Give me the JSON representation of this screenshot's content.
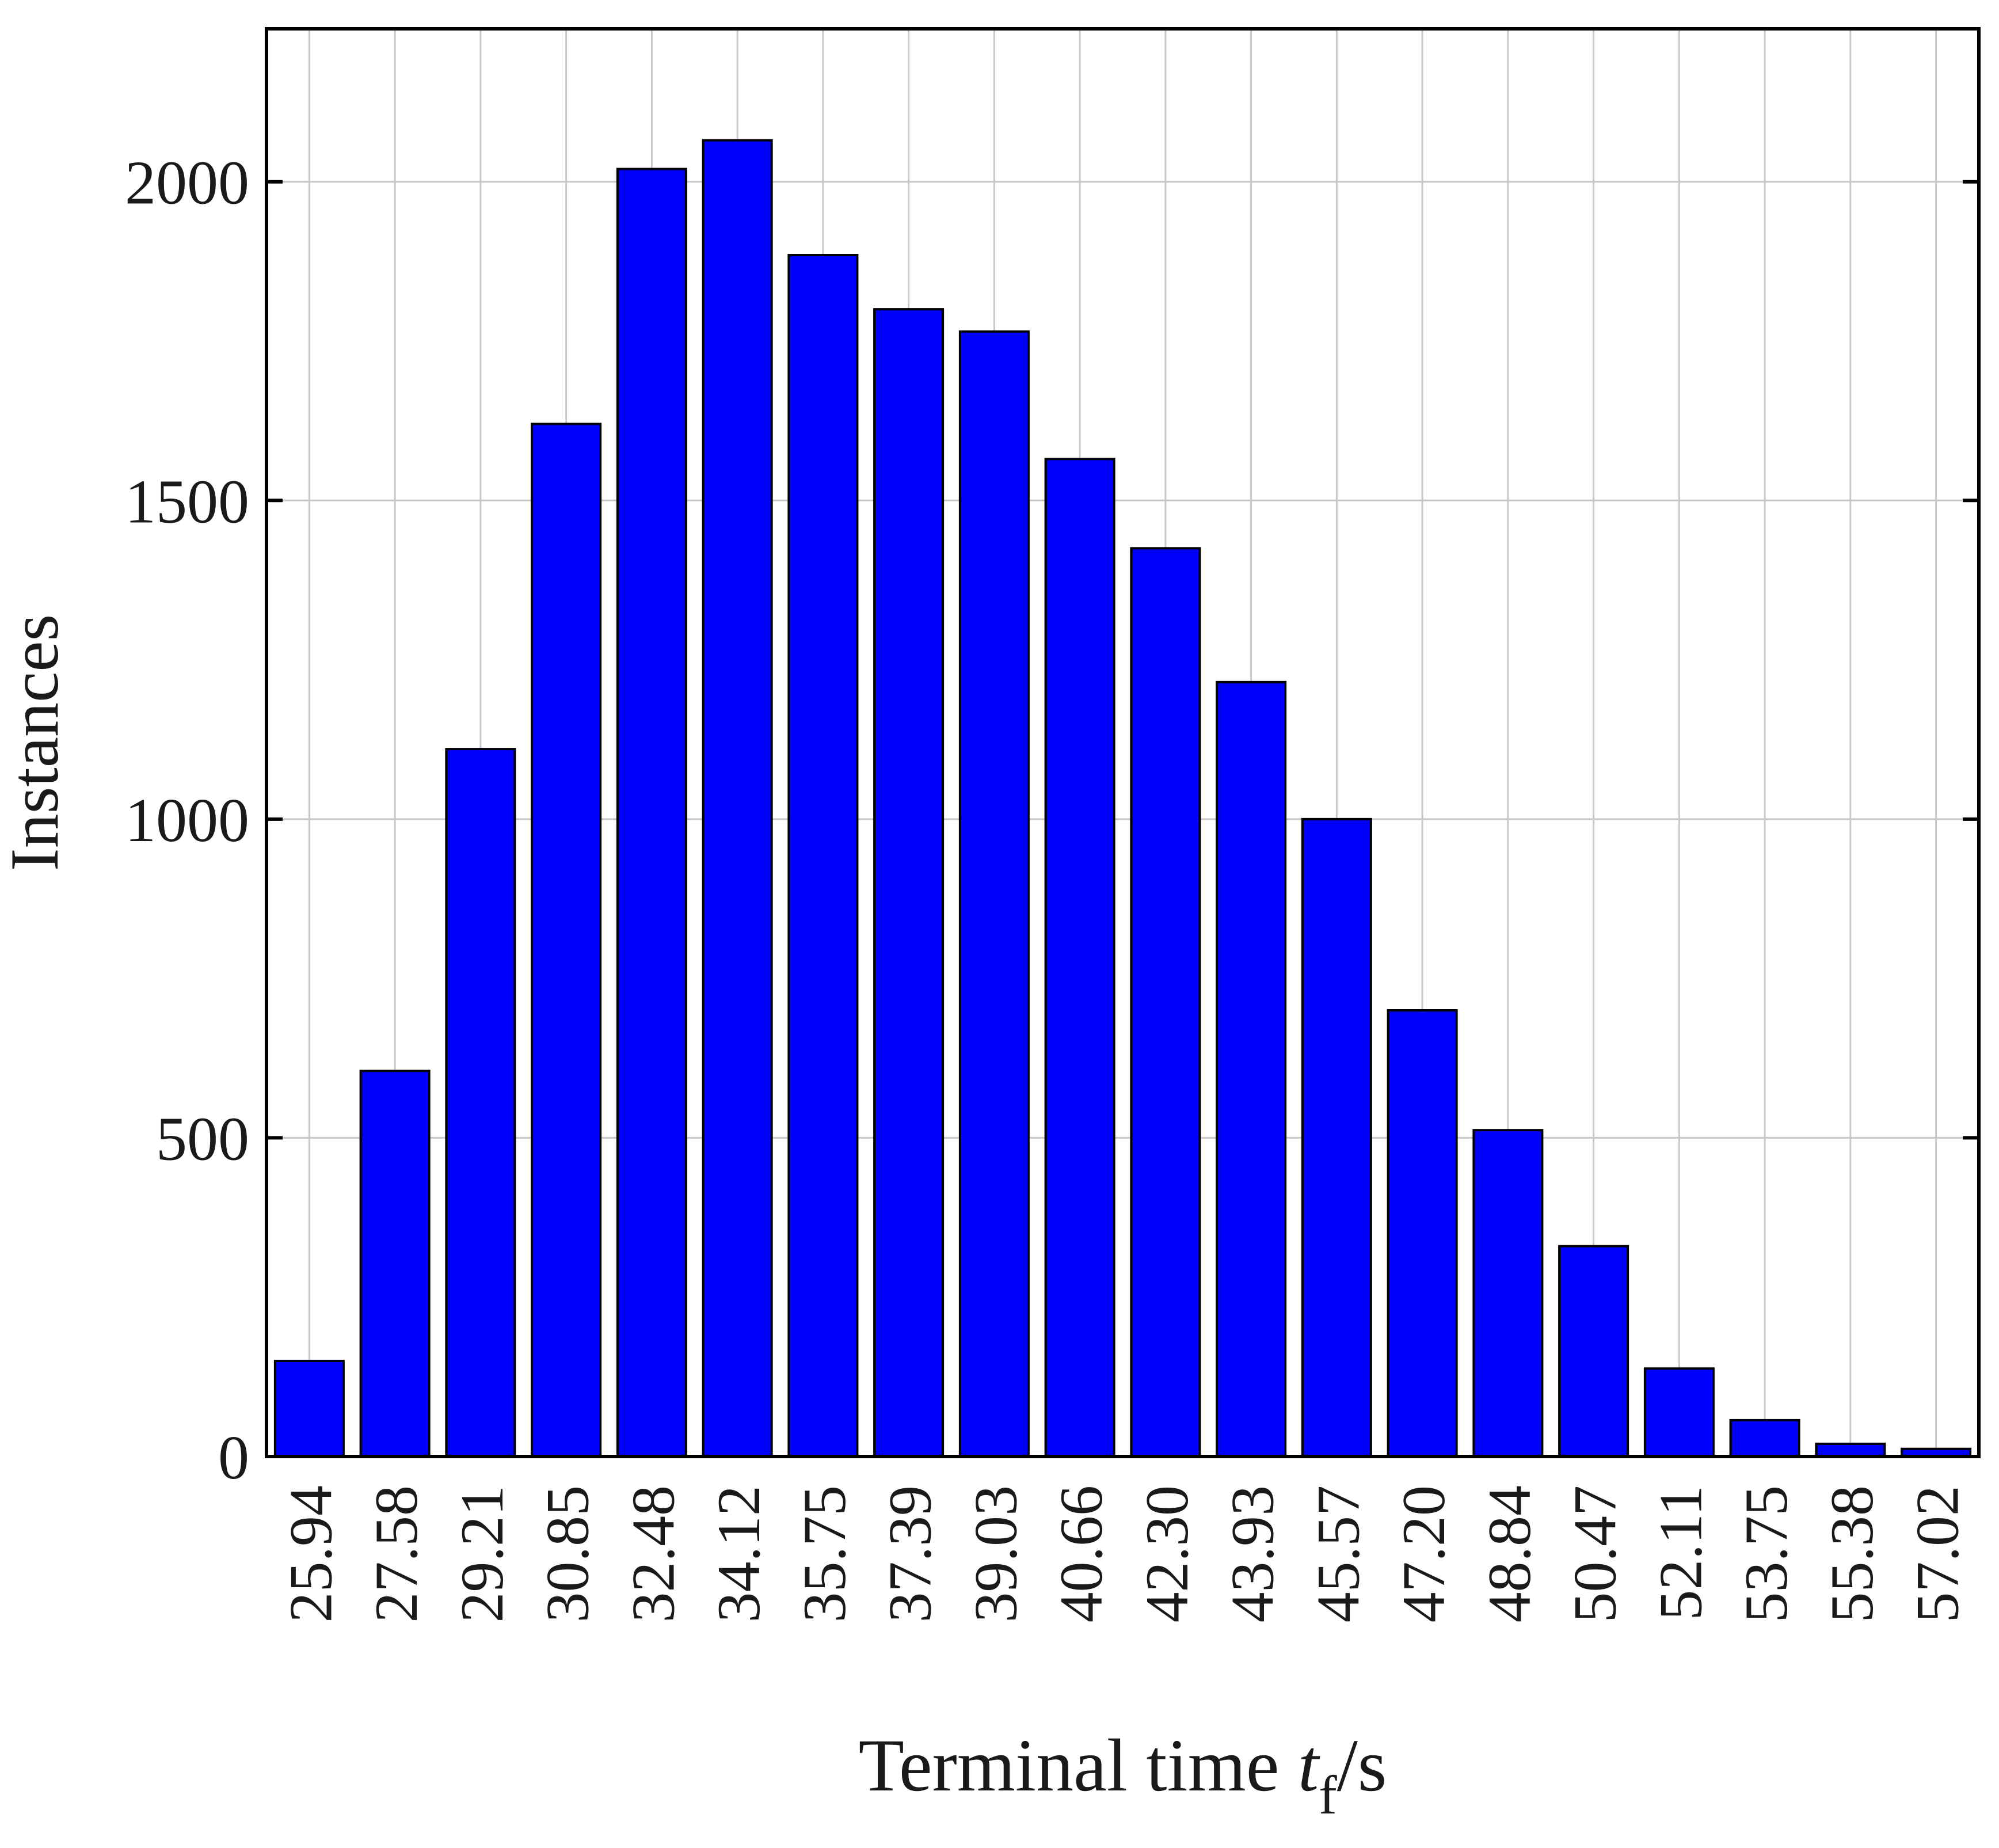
{
  "chart_data": {
    "type": "bar",
    "title": "",
    "xlabel": {
      "main": "Terminal time ",
      "var": "t",
      "sub": "f",
      "unit": "/s"
    },
    "ylabel": "Instances",
    "categories": [
      "25.94",
      "27.58",
      "29.21",
      "30.85",
      "32.48",
      "34.12",
      "35.75",
      "37.39",
      "39.03",
      "40.66",
      "42.30",
      "43.93",
      "45.57",
      "47.20",
      "48.84",
      "50.47",
      "52.11",
      "53.75",
      "55.38",
      "57.02"
    ],
    "values": [
      150,
      605,
      1110,
      1620,
      2020,
      2065,
      1885,
      1800,
      1765,
      1565,
      1425,
      1215,
      1000,
      700,
      512,
      330,
      138,
      57,
      20,
      12
    ],
    "ylim": [
      0,
      2240
    ],
    "yticks": [
      0,
      500,
      1000,
      1500,
      2000
    ],
    "grid": true,
    "colors": {
      "bar": "#0000ff",
      "bar_edge": "#000000",
      "grid": "#c8c8c8",
      "axis": "#000000"
    }
  }
}
